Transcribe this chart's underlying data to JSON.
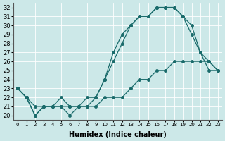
{
  "xlabel": "Humidex (Indice chaleur)",
  "ylabel": "",
  "bg_color": "#cce8e8",
  "line_color": "#1a6b6b",
  "xlim": [
    -0.5,
    23.5
  ],
  "ylim": [
    19.5,
    32.5
  ],
  "yticks": [
    20,
    21,
    22,
    23,
    24,
    25,
    26,
    27,
    28,
    29,
    30,
    31,
    32
  ],
  "xticks": [
    0,
    1,
    2,
    3,
    4,
    5,
    6,
    7,
    8,
    9,
    10,
    11,
    12,
    13,
    14,
    15,
    16,
    17,
    18,
    19,
    20,
    21,
    22,
    23
  ],
  "xtick_labels": [
    "0",
    "1",
    "2",
    "3",
    "4",
    "5",
    "6",
    "7",
    "8",
    "9",
    "10",
    "11",
    "12",
    "13",
    "14",
    "15",
    "16",
    "17",
    "18",
    "19",
    "20",
    "21",
    "22",
    "23"
  ],
  "series": [
    [
      23,
      22,
      20,
      21,
      21,
      21,
      20,
      21,
      21,
      22,
      24,
      27,
      29,
      30,
      31,
      31,
      32,
      32,
      32,
      31,
      30,
      27,
      25,
      25
    ],
    [
      23,
      22,
      20,
      21,
      21,
      21,
      21,
      21,
      22,
      22,
      24,
      26,
      28,
      30,
      31,
      31,
      32,
      32,
      32,
      31,
      29,
      27,
      26,
      25
    ],
    [
      23,
      22,
      21,
      21,
      21,
      22,
      21,
      21,
      21,
      21,
      22,
      22,
      22,
      23,
      24,
      24,
      25,
      25,
      26,
      26,
      26,
      26,
      26,
      25
    ]
  ]
}
